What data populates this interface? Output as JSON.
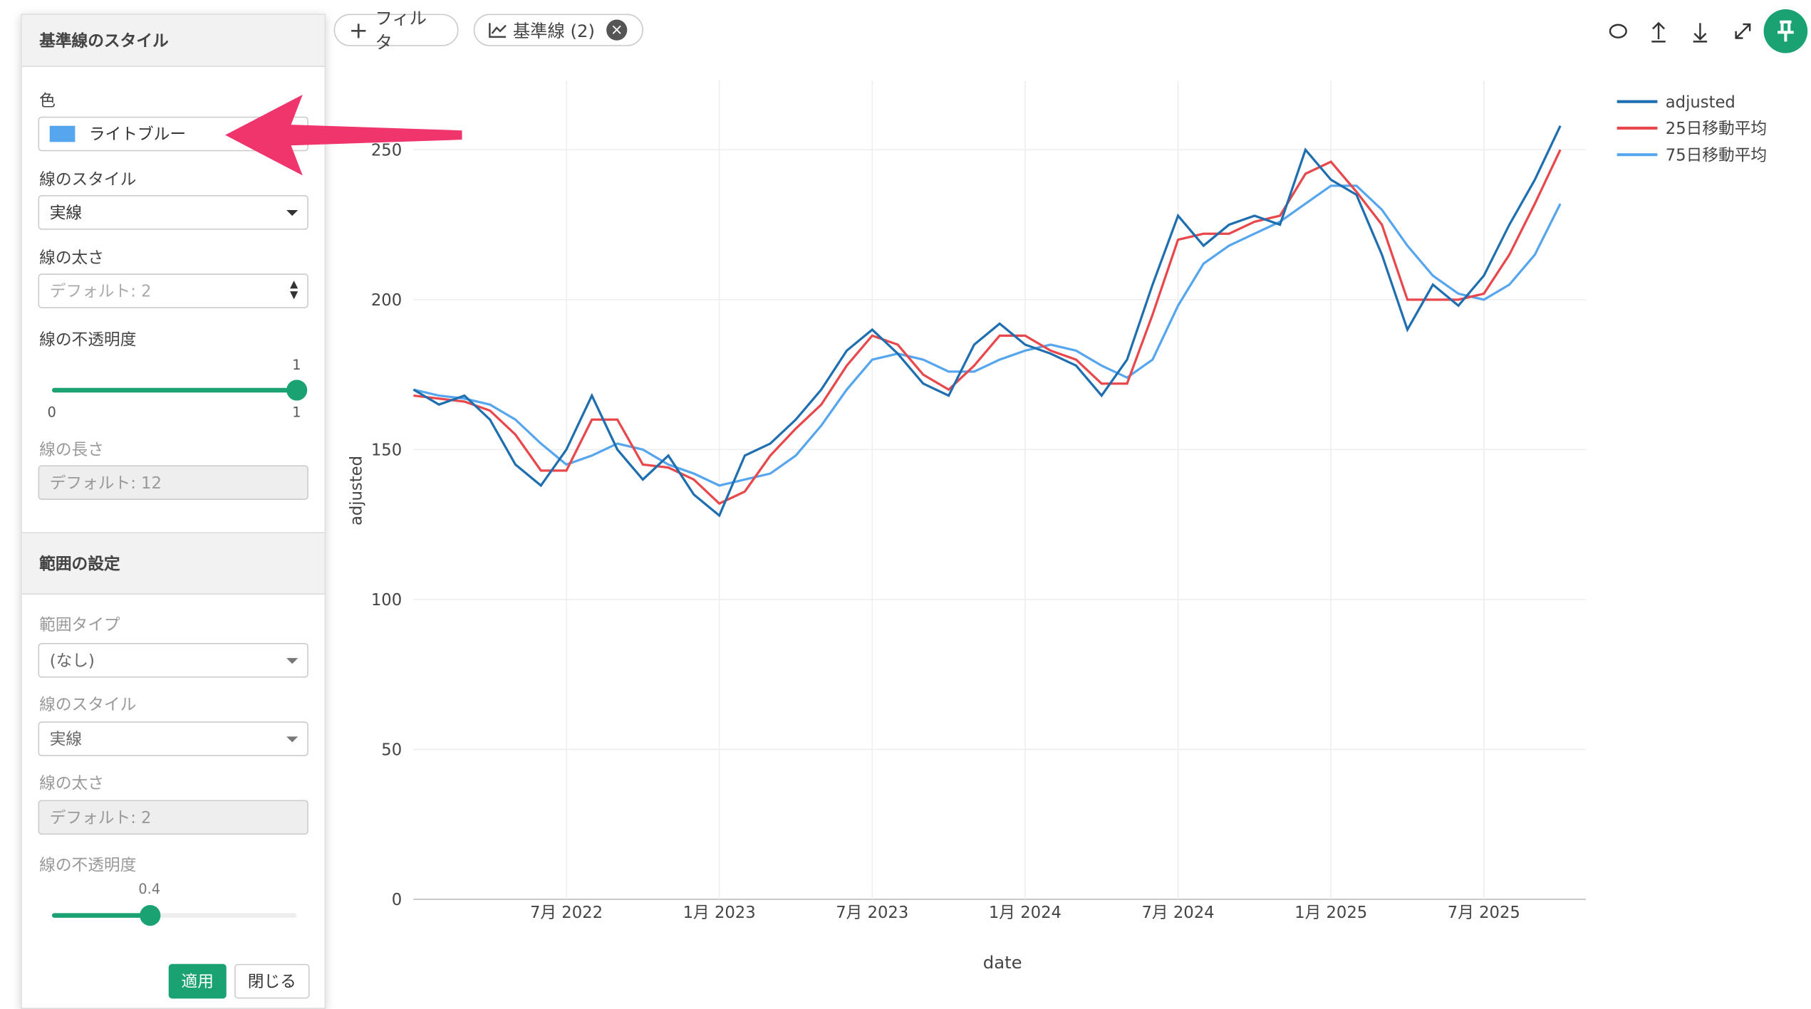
{
  "toolbar": {
    "filter": "フィルタ",
    "reference_line": "基準線 (2)"
  },
  "panel": {
    "title": "基準線のスタイル",
    "color_label": "色",
    "color_value": "ライトブルー",
    "line_style_label": "線のスタイル",
    "line_style_value": "実線",
    "line_width_label": "線の太さ",
    "line_width_placeholder": "デフォルト: 2",
    "opacity_label": "線の不透明度",
    "opacity": {
      "value": 1,
      "min": 0,
      "max": 1
    },
    "line_length_label": "線の長さ",
    "line_length_placeholder": "デフォルト: 12",
    "range_title": "範囲の設定",
    "range_type_label": "範囲タイプ",
    "range_type_value": "(なし)",
    "range_line_style_label": "線のスタイル",
    "range_line_style_value": "実線",
    "range_line_width_label": "線の太さ",
    "range_line_width_placeholder": "デフォルト: 2",
    "range_opacity_label": "線の不透明度",
    "range_opacity": 0.4,
    "apply": "適用",
    "close": "閉じる"
  },
  "chart_data": {
    "type": "line",
    "x_label": "date",
    "y_label": "adjusted",
    "x": [
      "2022-01",
      "2022-02",
      "2022-03",
      "2022-04",
      "2022-05",
      "2022-06",
      "2022-07",
      "2022-08",
      "2022-09",
      "2022-10",
      "2022-11",
      "2022-12",
      "2023-01",
      "2023-02",
      "2023-03",
      "2023-04",
      "2023-05",
      "2023-06",
      "2023-07",
      "2023-08",
      "2023-09",
      "2023-10",
      "2023-11",
      "2023-12",
      "2024-01",
      "2024-02",
      "2024-03",
      "2024-04",
      "2024-05",
      "2024-06",
      "2024-07",
      "2024-08",
      "2024-09",
      "2024-10",
      "2024-11",
      "2024-12",
      "2025-01",
      "2025-02",
      "2025-03",
      "2025-04",
      "2025-05",
      "2025-06",
      "2025-07",
      "2025-08",
      "2025-09",
      "2025-10"
    ],
    "series": [
      {
        "name": "adjusted",
        "color": "#1f6fb0",
        "values": [
          170,
          165,
          168,
          160,
          145,
          138,
          150,
          168,
          150,
          140,
          148,
          135,
          128,
          148,
          152,
          160,
          170,
          183,
          190,
          182,
          172,
          168,
          185,
          192,
          185,
          182,
          178,
          168,
          180,
          205,
          228,
          218,
          225,
          228,
          225,
          250,
          240,
          235,
          215,
          190,
          205,
          198,
          208,
          225,
          240,
          258
        ]
      },
      {
        "name": "25日移動平均",
        "color": "#e8474b",
        "values": [
          168,
          167,
          166,
          163,
          155,
          143,
          143,
          160,
          160,
          145,
          144,
          140,
          132,
          136,
          148,
          157,
          165,
          178,
          188,
          185,
          175,
          170,
          178,
          188,
          188,
          183,
          180,
          172,
          172,
          195,
          220,
          222,
          222,
          226,
          228,
          242,
          246,
          236,
          225,
          200,
          200,
          200,
          202,
          215,
          232,
          250
        ]
      },
      {
        "name": "75日移動平均",
        "color": "#55a6ee",
        "values": [
          170,
          168,
          167,
          165,
          160,
          152,
          145,
          148,
          152,
          150,
          145,
          142,
          138,
          140,
          142,
          148,
          158,
          170,
          180,
          182,
          180,
          176,
          176,
          180,
          183,
          185,
          183,
          178,
          174,
          180,
          198,
          212,
          218,
          222,
          226,
          232,
          238,
          238,
          230,
          218,
          208,
          202,
          200,
          205,
          215,
          232
        ]
      }
    ],
    "xlim": [
      "2022-01",
      "2025-11"
    ],
    "xticks": [
      {
        "value": "2022-07",
        "label": "7月 2022"
      },
      {
        "value": "2023-01",
        "label": "1月 2023"
      },
      {
        "value": "2023-07",
        "label": "7月 2023"
      },
      {
        "value": "2024-01",
        "label": "1月 2024"
      },
      {
        "value": "2024-07",
        "label": "7月 2024"
      },
      {
        "value": "2025-01",
        "label": "1月 2025"
      },
      {
        "value": "2025-07",
        "label": "7月 2025"
      }
    ],
    "ylim": [
      0,
      273
    ],
    "yticks": [
      0,
      50,
      100,
      150,
      200,
      250
    ],
    "grid": true,
    "legend": "right"
  }
}
